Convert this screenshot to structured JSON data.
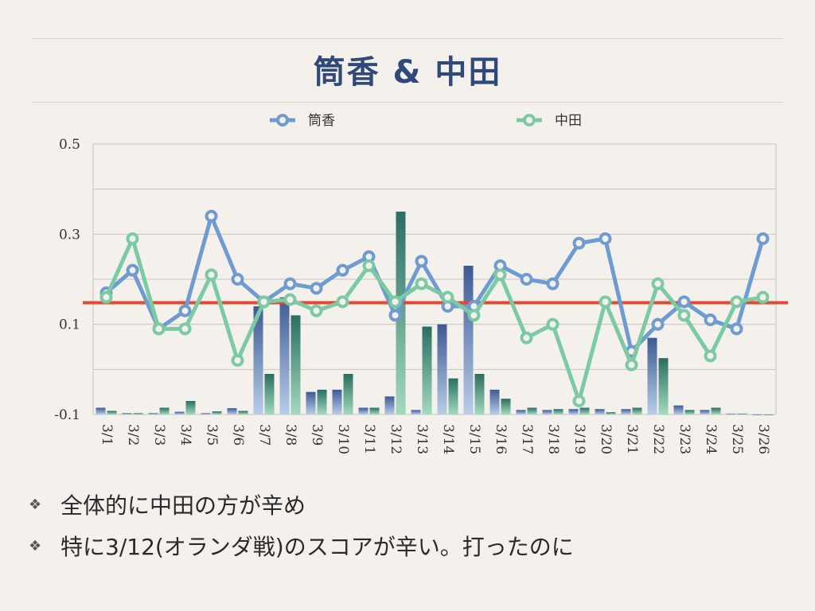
{
  "slide": {
    "title": "筒香 & 中田",
    "bullets": [
      {
        "icon": "diamond-cluster-icon",
        "text": "全体的に中田の方が辛め"
      },
      {
        "icon": "diamond-cluster-icon",
        "text": "特に3/12(オランダ戦)のスコアが辛い。打ったのに"
      }
    ]
  },
  "chart_data": {
    "type": "bar+line",
    "categories": [
      "3/1",
      "3/2",
      "3/3",
      "3/4",
      "3/5",
      "3/6",
      "3/7",
      "3/8",
      "3/9",
      "3/10",
      "3/11",
      "3/12",
      "3/13",
      "3/14",
      "3/15",
      "3/16",
      "3/17",
      "3/18",
      "3/19",
      "3/20",
      "3/21",
      "3/22",
      "3/23",
      "3/24",
      "3/25",
      "3/26"
    ],
    "y_ticks": [
      "0.5",
      "0.3",
      "0.1",
      "-0.1"
    ],
    "ylim": [
      -0.1,
      0.5
    ],
    "grid": true,
    "legend_position": "top",
    "reference_line": {
      "value": 0.148,
      "color": "#e04a32"
    },
    "series": [
      {
        "name": "筒香",
        "kind": "line",
        "color": "#6e9bd0",
        "values": [
          0.17,
          0.22,
          0.09,
          0.13,
          0.34,
          0.2,
          0.15,
          0.19,
          0.18,
          0.22,
          0.25,
          0.12,
          0.24,
          0.14,
          0.14,
          0.23,
          0.2,
          0.19,
          0.28,
          0.29,
          0.04,
          0.1,
          0.15,
          0.11,
          0.09,
          0.29
        ]
      },
      {
        "name": "中田",
        "kind": "line",
        "color": "#7ccaa4",
        "values": [
          0.16,
          0.29,
          0.09,
          0.09,
          0.21,
          0.02,
          0.15,
          0.155,
          0.13,
          0.15,
          0.23,
          0.15,
          0.19,
          0.16,
          0.12,
          0.21,
          0.07,
          0.1,
          -0.07,
          0.15,
          0.01,
          0.19,
          0.12,
          0.03,
          0.15,
          0.16
        ]
      }
    ],
    "bar_series": [
      {
        "kind": "bar",
        "color_top": "#3d5a94",
        "color_bottom": "#b8cdea",
        "values": [
          -0.085,
          -0.097,
          -0.097,
          -0.094,
          -0.097,
          -0.086,
          0.14,
          0.16,
          -0.05,
          -0.045,
          -0.085,
          -0.06,
          -0.09,
          0.1,
          0.23,
          -0.045,
          -0.09,
          -0.09,
          -0.088,
          -0.088,
          -0.088,
          0.07,
          -0.08,
          -0.09,
          -0.098,
          -0.1
        ]
      },
      {
        "kind": "bar",
        "color_top": "#2a6e62",
        "color_bottom": "#a3d9bf",
        "values": [
          -0.092,
          -0.097,
          -0.085,
          -0.07,
          -0.093,
          -0.092,
          -0.01,
          0.12,
          -0.045,
          -0.01,
          -0.085,
          0.35,
          0.095,
          -0.02,
          -0.01,
          -0.065,
          -0.085,
          -0.088,
          -0.085,
          -0.095,
          -0.085,
          0.025,
          -0.09,
          -0.085,
          -0.098,
          -0.1
        ]
      }
    ]
  }
}
